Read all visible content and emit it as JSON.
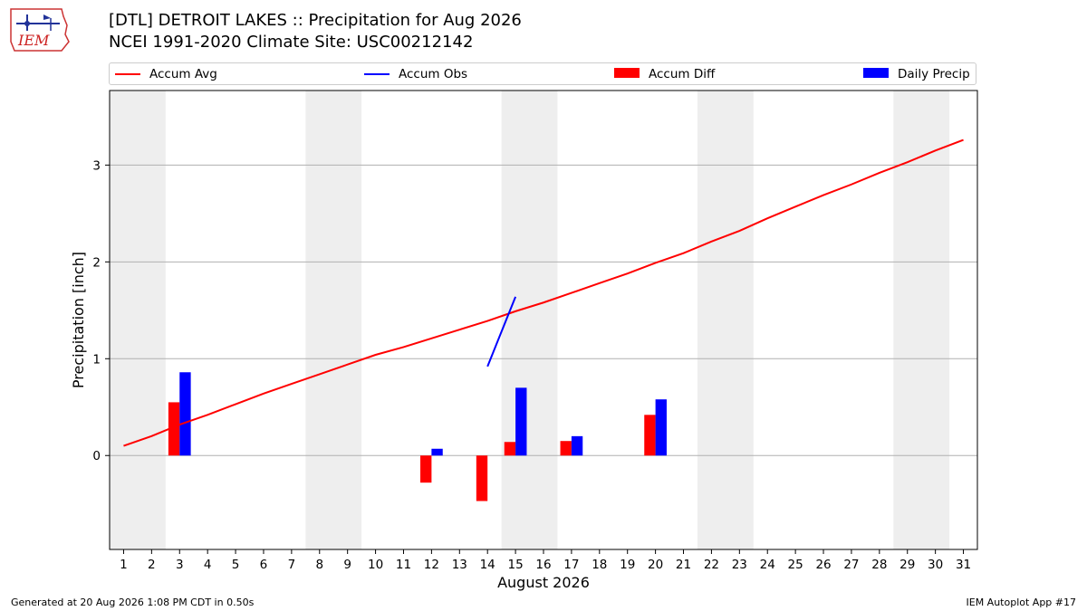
{
  "header": {
    "title": "[DTL] DETROIT LAKES :: Precipitation for Aug 2026",
    "subtitle": "NCEI 1991-2020 Climate Site: USC00212142",
    "logo_text": "IEM"
  },
  "footer": {
    "left": "Generated at 20 Aug 2026 1:08 PM CDT in 0.50s",
    "right": "IEM Autoplot App #17"
  },
  "legend": {
    "items": [
      {
        "label": "Accum Avg",
        "kind": "line",
        "color": "#ff0000"
      },
      {
        "label": "Accum Obs",
        "kind": "line",
        "color": "#0000ff"
      },
      {
        "label": "Accum Diff",
        "kind": "bar",
        "color": "#ff0000"
      },
      {
        "label": "Daily Precip",
        "kind": "bar",
        "color": "#0000ff"
      }
    ]
  },
  "chart_data": {
    "type": "bar",
    "xlabel": "August 2026",
    "ylabel": "Precipitation [inch]",
    "xlim": [
      0.5,
      31.5
    ],
    "ylim": [
      -0.97,
      3.77
    ],
    "xticks": [
      1,
      2,
      3,
      4,
      5,
      6,
      7,
      8,
      9,
      10,
      11,
      12,
      13,
      14,
      15,
      16,
      17,
      18,
      19,
      20,
      21,
      22,
      23,
      24,
      25,
      26,
      27,
      28,
      29,
      30,
      31
    ],
    "yticks": [
      0,
      1,
      2,
      3
    ],
    "grid": "horizontal",
    "weekend_shading": [
      [
        0.5,
        2.5
      ],
      [
        7.5,
        9.5
      ],
      [
        14.5,
        16.5
      ],
      [
        21.5,
        23.5
      ],
      [
        28.5,
        30.5
      ]
    ],
    "weekend_color": "#eeeeee",
    "series": [
      {
        "name": "Accum Avg",
        "kind": "line",
        "color": "#ff0000",
        "x": [
          1,
          2,
          3,
          4,
          5,
          6,
          7,
          8,
          9,
          10,
          11,
          12,
          13,
          14,
          15,
          16,
          17,
          18,
          19,
          20,
          21,
          22,
          23,
          24,
          25,
          26,
          27,
          28,
          29,
          30,
          31
        ],
        "values": [
          0.1,
          0.2,
          0.32,
          0.42,
          0.53,
          0.64,
          0.74,
          0.84,
          0.94,
          1.04,
          1.12,
          1.21,
          1.3,
          1.39,
          1.49,
          1.58,
          1.68,
          1.78,
          1.88,
          1.99,
          2.09,
          2.21,
          2.32,
          2.45,
          2.57,
          2.69,
          2.8,
          2.92,
          3.03,
          3.15,
          3.26
        ]
      },
      {
        "name": "Accum Obs",
        "kind": "line",
        "color": "#0000ff",
        "x": [
          14,
          15
        ],
        "values": [
          0.92,
          1.64
        ]
      },
      {
        "name": "Accum Diff",
        "kind": "bar",
        "color": "#ff0000",
        "x": [
          3,
          12,
          14,
          15,
          17,
          20
        ],
        "values": [
          0.55,
          -0.28,
          -0.47,
          0.14,
          0.15,
          0.42
        ]
      },
      {
        "name": "Daily Precip",
        "kind": "bar",
        "color": "#0000ff",
        "x": [
          3,
          12,
          15,
          17,
          20
        ],
        "values": [
          0.86,
          0.07,
          0.7,
          0.2,
          0.58
        ]
      }
    ]
  }
}
